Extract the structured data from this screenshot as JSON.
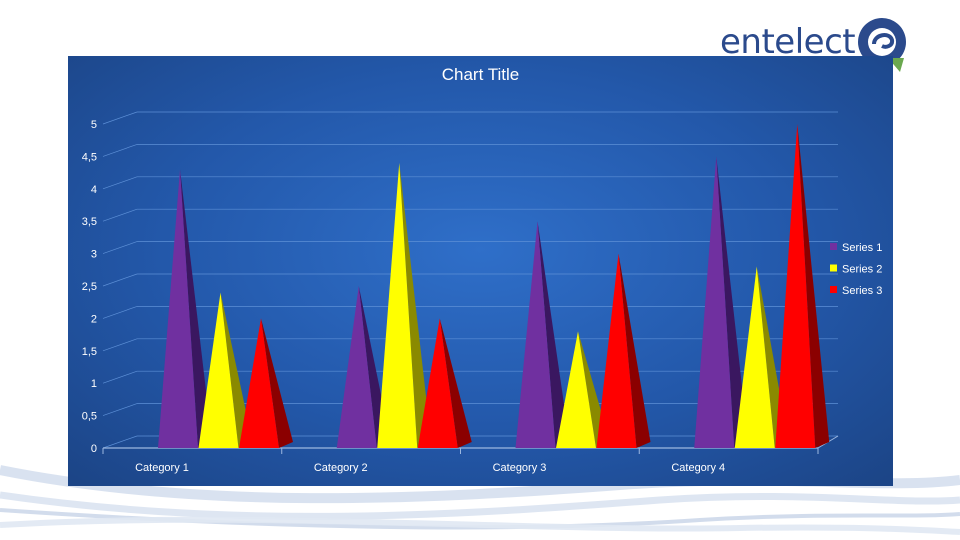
{
  "brand": {
    "logo_text": "entelect"
  },
  "colors": {
    "panel": "#2358aa",
    "series1": "#7030a0",
    "series1_shade": "#3a1760",
    "series2": "#ffff00",
    "series2_shade": "#8a8a00",
    "series3": "#ff0000",
    "series3_shade": "#8b0000"
  },
  "chart_data": {
    "type": "bar",
    "style": "3d-pyramid",
    "title": "Chart Title",
    "categories": [
      "Category 1",
      "Category 2",
      "Category 3",
      "Category 4"
    ],
    "series": [
      {
        "name": "Series 1",
        "values": [
          4.3,
          2.5,
          3.5,
          4.5
        ]
      },
      {
        "name": "Series 2",
        "values": [
          2.4,
          4.4,
          1.8,
          2.8
        ]
      },
      {
        "name": "Series 3",
        "values": [
          2.0,
          2.0,
          3.0,
          5.0
        ]
      }
    ],
    "y_ticks": [
      "0",
      "0,5",
      "1",
      "1,5",
      "2",
      "2,5",
      "3",
      "3,5",
      "4",
      "4,5",
      "5"
    ],
    "ylim": [
      0,
      5
    ],
    "grid": true,
    "legend_position": "right"
  }
}
